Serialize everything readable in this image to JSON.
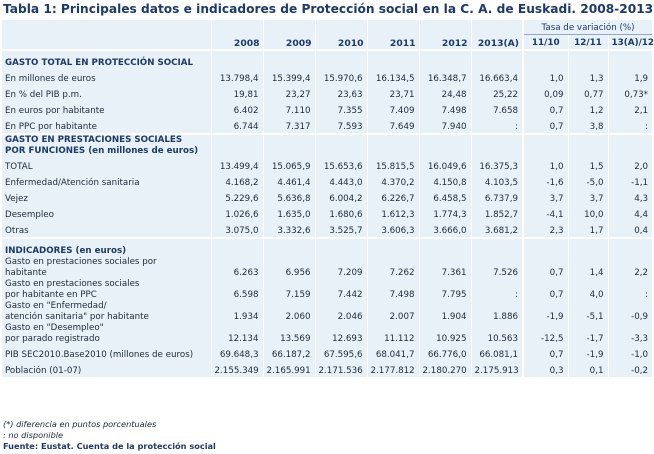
{
  "title": "Tabla 1: Principales datos e indicadores de Protección social en la C. A. de Euskadi. 2008-2013(A)",
  "header": {
    "years": [
      "2008",
      "2009",
      "2010",
      "2011",
      "2012",
      "2013(A)"
    ],
    "tasa_label": "Tasa de variación (%)",
    "tasa_cols": [
      "11/10",
      "12/11",
      "13(A)/12"
    ]
  },
  "sections": {
    "gasto_total": "GASTO TOTAL EN PROTECCIÓN SOCIAL",
    "prestaciones_1": "GASTO EN PRESTACIONES SOCIALES",
    "prestaciones_2": "POR FUNCIONES (en millones de euros)",
    "indicadores": "INDICADORES (en euros)"
  },
  "rows": {
    "millones": {
      "label": "En millones de euros",
      "v": [
        "13.798,4",
        "15.399,4",
        "15.970,6",
        "16.134,5",
        "16.348,7",
        "16.663,4"
      ],
      "t": [
        "1,0",
        "1,3",
        "1,9"
      ]
    },
    "pib": {
      "label": "En % del PIB p.m.",
      "v": [
        "19,81",
        "23,27",
        "23,63",
        "23,71",
        "24,48",
        "25,22"
      ],
      "t": [
        "0,09",
        "0,77",
        "0,73*"
      ]
    },
    "por_habitante": {
      "label": "En euros por habitante",
      "v": [
        "6.402",
        "7.110",
        "7.355",
        "7.409",
        "7.498",
        "7.658"
      ],
      "t": [
        "0,7",
        "1,2",
        "2,1"
      ]
    },
    "ppc_habitante": {
      "label": "En PPC por habitante",
      "v": [
        "6.744",
        "7.317",
        "7.593",
        "7.649",
        "7.940",
        ":"
      ],
      "t": [
        "0,7",
        "3,8",
        ":"
      ]
    },
    "total": {
      "label": "TOTAL",
      "v": [
        "13.499,4",
        "15.065,9",
        "15.653,6",
        "15.815,5",
        "16.049,6",
        "16.375,3"
      ],
      "t": [
        "1,0",
        "1,5",
        "2,0"
      ]
    },
    "enfermedad": {
      "label": "Enfermedad/Atención sanitaria",
      "v": [
        "4.168,2",
        "4.461,4",
        "4.443,0",
        "4.370,2",
        "4.150,8",
        "4.103,5"
      ],
      "t": [
        "-1,6",
        "-5,0",
        "-1,1"
      ]
    },
    "vejez": {
      "label": "Vejez",
      "v": [
        "5.229,6",
        "5.636,8",
        "6.004,2",
        "6.226,7",
        "6.458,5",
        "6.737,9"
      ],
      "t": [
        "3,7",
        "3,7",
        "4,3"
      ]
    },
    "desempleo": {
      "label": "Desempleo",
      "v": [
        "1.026,6",
        "1.635,0",
        "1.680,6",
        "1.612,3",
        "1.774,3",
        "1.852,7"
      ],
      "t": [
        "-4,1",
        "10,0",
        "4,4"
      ]
    },
    "otras": {
      "label": "Otras",
      "v": [
        "3.075,0",
        "3.332,6",
        "3.525,7",
        "3.606,3",
        "3.666,0",
        "3.681,2"
      ],
      "t": [
        "2,3",
        "1,7",
        "0,4"
      ]
    },
    "ind_gasto_hab": {
      "label1": "Gasto en prestaciones sociales por",
      "label2": "habitante",
      "v": [
        "6.263",
        "6.956",
        "7.209",
        "7.262",
        "7.361",
        "7.526"
      ],
      "t": [
        "0,7",
        "1,4",
        "2,2"
      ]
    },
    "ind_gasto_ppc": {
      "label1": "Gasto en prestaciones sociales",
      "label2": "por habitante en PPC",
      "v": [
        "6.598",
        "7.159",
        "7.442",
        "7.498",
        "7.795",
        ":"
      ],
      "t": [
        "0,7",
        "4,0",
        ":"
      ]
    },
    "ind_enfermedad": {
      "label1": "Gasto en \"Enfermedad/",
      "label2": "atención sanitaria\" por habitante",
      "v": [
        "1.934",
        "2.060",
        "2.046",
        "2.007",
        "1.904",
        "1.886"
      ],
      "t": [
        "-1,9",
        "-5,1",
        "-0,9"
      ]
    },
    "ind_desempleo": {
      "label1": "Gasto en \"Desempleo\"",
      "label2": "por parado registrado",
      "v": [
        "12.134",
        "13.569",
        "12.693",
        "11.112",
        "10.925",
        "10.563"
      ],
      "t": [
        "-12,5",
        "-1,7",
        "-3,3"
      ]
    },
    "pib_sec": {
      "label": "PIB SEC2010.Base2010 (millones de euros)",
      "v": [
        "69.648,3",
        "66.187,2",
        "67.595,6",
        "68.041,7",
        "66.776,0",
        "66.081,1"
      ],
      "t": [
        "0,7",
        "-1,9",
        "-1,0"
      ]
    },
    "poblacion": {
      "label": "Población (01-07)",
      "v": [
        "2.155.349",
        "2.165.991",
        "2.171.536",
        "2.177.812",
        "2.180.270",
        "2.175.913"
      ],
      "t": [
        "0,3",
        "0,1",
        "-0,2"
      ]
    }
  },
  "footnotes": {
    "note1": "(*) diferencia en puntos porcentuales",
    "note2": ": no disponible",
    "source": "Fuente: Eustat. Cuenta de la protección social"
  }
}
